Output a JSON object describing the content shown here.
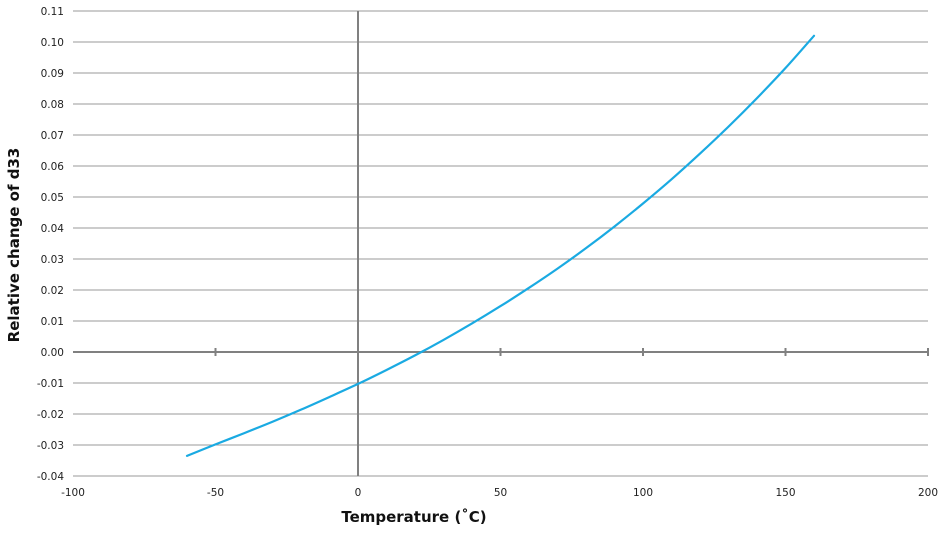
{
  "chart_data": {
    "type": "line",
    "title": "",
    "xlabel": "Temperature (˚C)",
    "ylabel": "Relative change of d33",
    "xlim": [
      -100,
      200
    ],
    "ylim": [
      -0.04,
      0.11
    ],
    "x_ticks": [
      "-100",
      "-50",
      "0",
      "50",
      "100",
      "150",
      "200"
    ],
    "y_ticks": [
      "0.11",
      "0.10",
      "0.09",
      "0.08",
      "0.07",
      "0.06",
      "0.05",
      "0.04",
      "0.03",
      "0.02",
      "0.01",
      "0.00",
      "-0.01",
      "-0.02",
      "-0.03",
      "-0.04"
    ],
    "grid": true,
    "legend": "none",
    "series_color": "#1aaae2",
    "series": [
      {
        "x": [
          -60,
          -50,
          -40,
          -30,
          -20,
          -10,
          0,
          10,
          20,
          30,
          40,
          50,
          60,
          70,
          80,
          90,
          100,
          110,
          120,
          130,
          140,
          150,
          160
        ],
        "values": [
          -0.0335,
          -0.0298,
          -0.0262,
          -0.0225,
          -0.0186,
          -0.0145,
          -0.0103,
          -0.0058,
          -0.0011,
          0.0039,
          0.0092,
          0.0148,
          0.0207,
          0.0269,
          0.0335,
          0.0405,
          0.0479,
          0.0557,
          0.064,
          0.0727,
          0.0819,
          0.0916,
          0.102
        ]
      }
    ]
  }
}
